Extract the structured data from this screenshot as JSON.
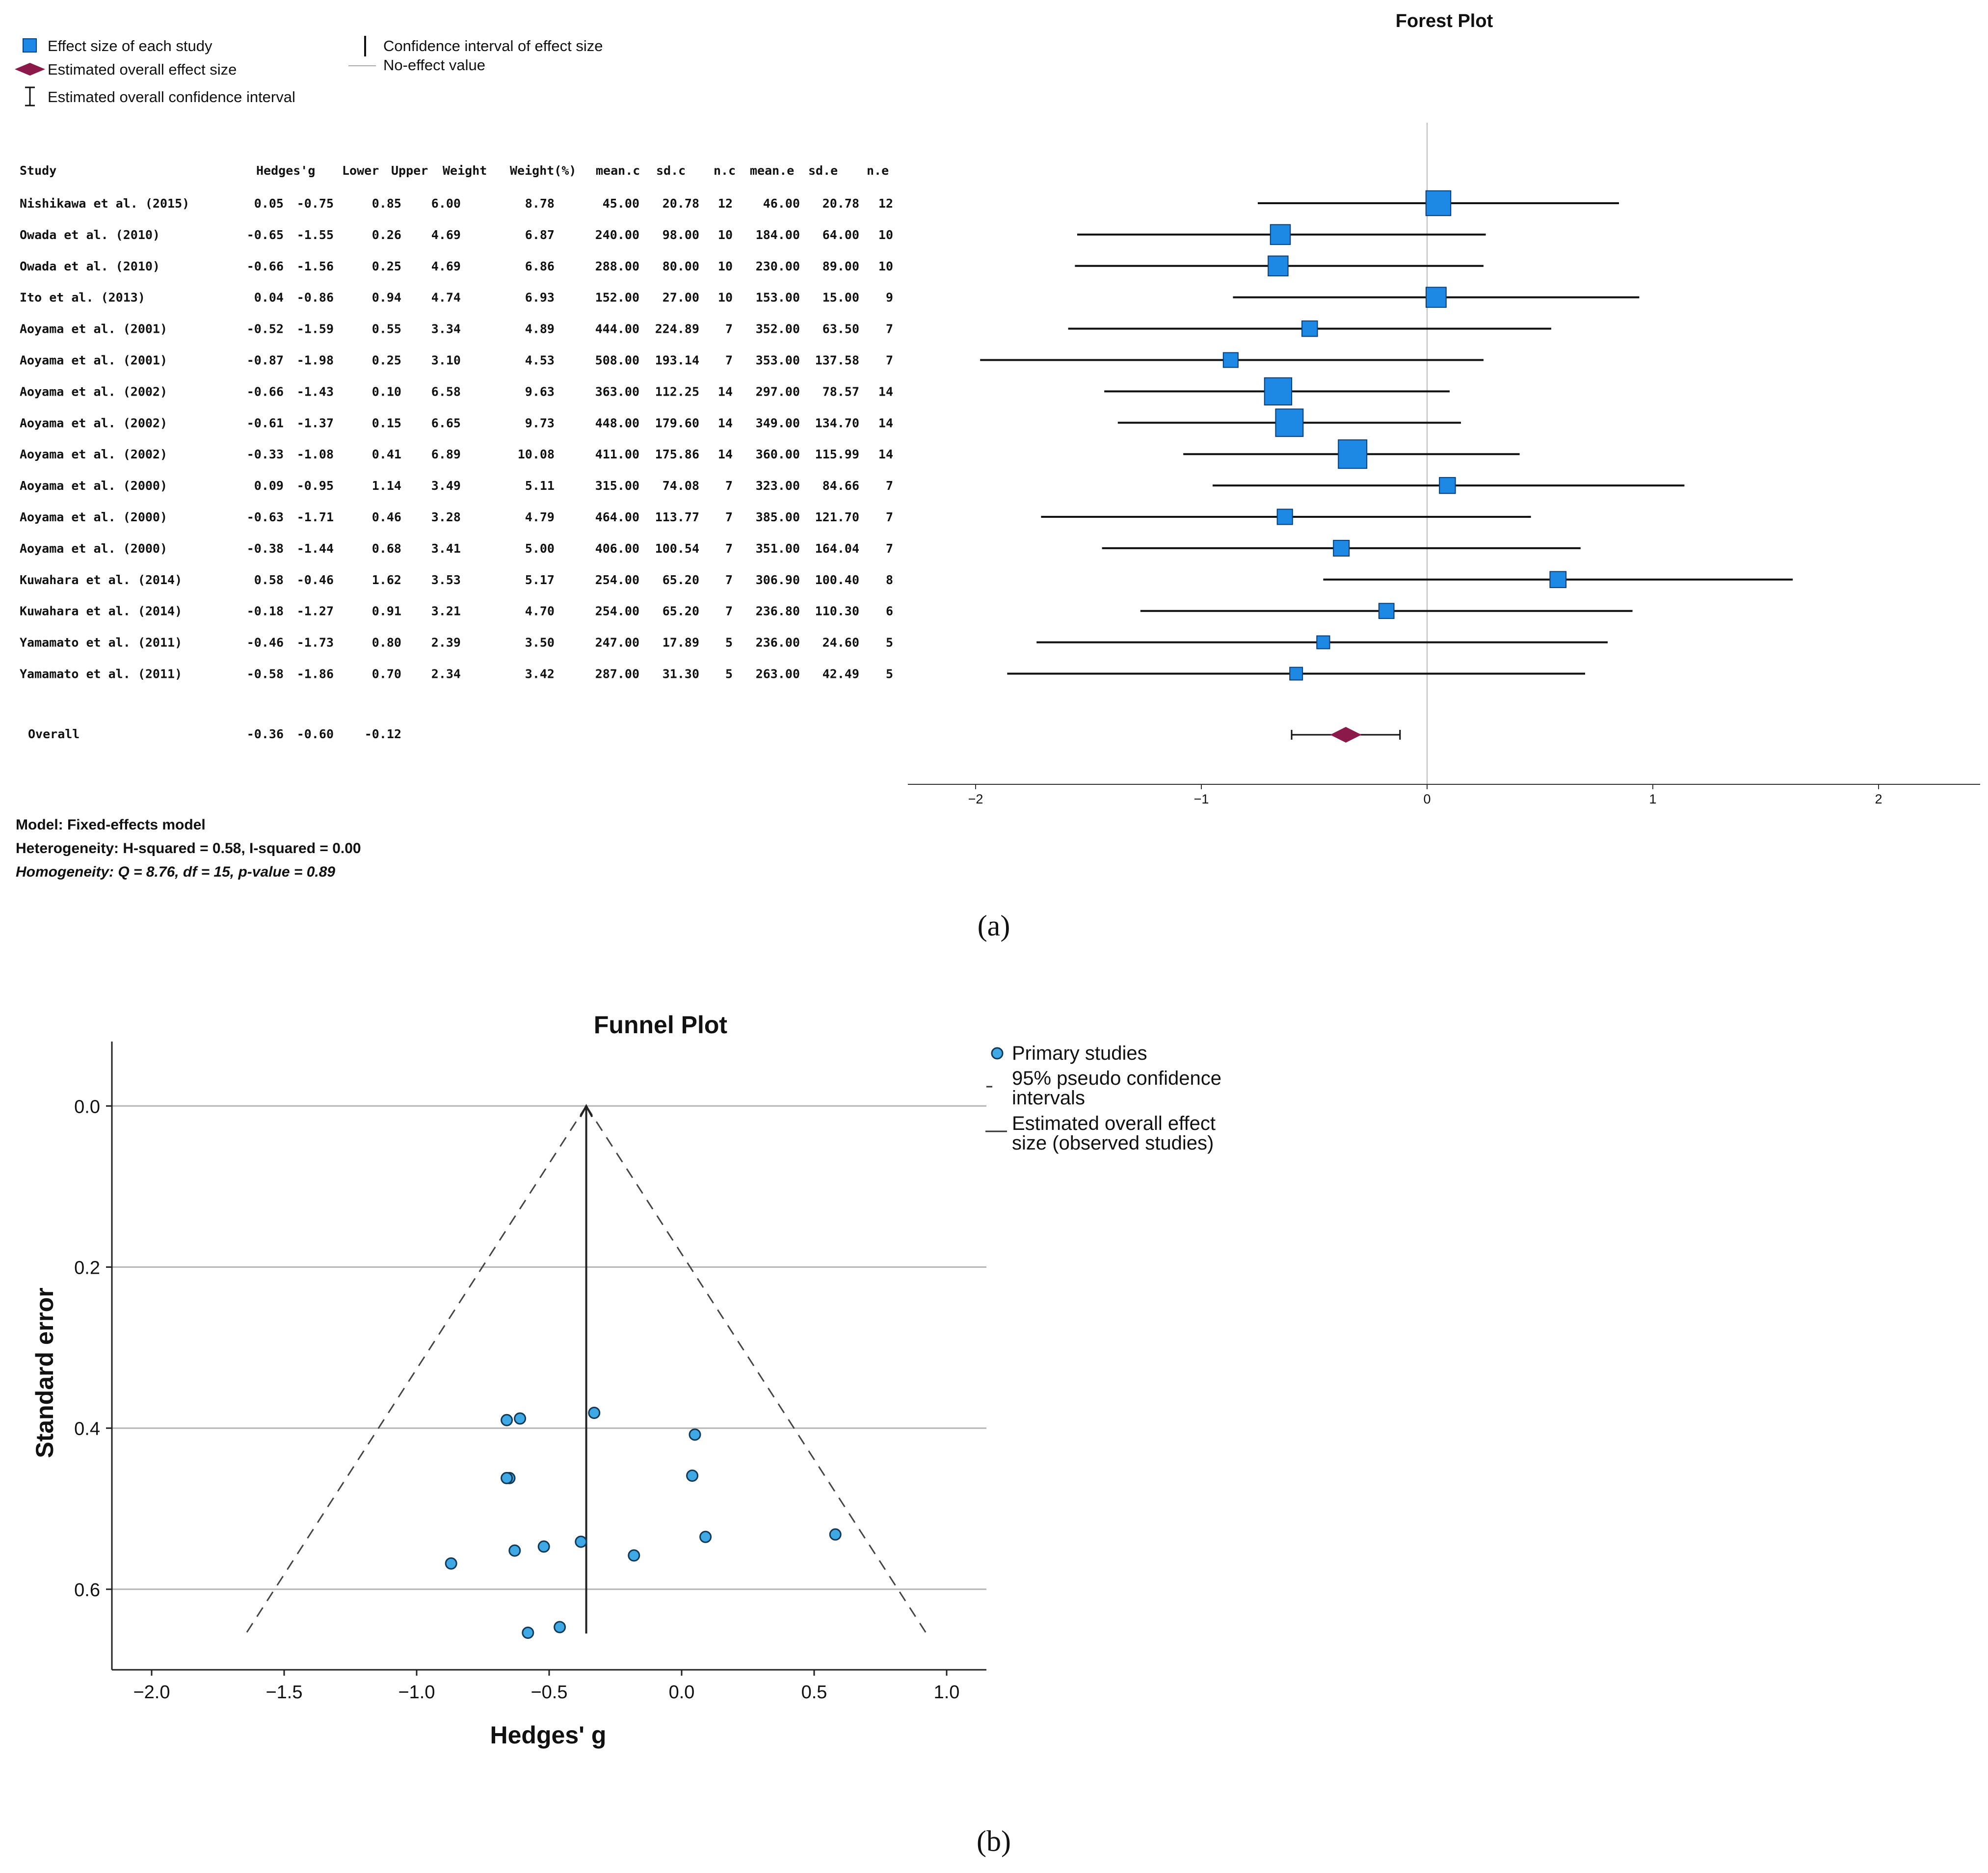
{
  "chart_data": [
    {
      "type": "forest",
      "panel": "(a)",
      "title": "Forest Plot",
      "legend": {
        "study_effect": "Effect size of each study",
        "overall_effect": "Estimated overall effect size",
        "overall_ci": "Estimated overall confidence interval",
        "study_ci": "Confidence interval of effect size",
        "no_effect": "No-effect value"
      },
      "columns": [
        "Study",
        "Hedges'g",
        "Lower",
        "Upper",
        "Weight",
        "Weight(%)",
        "mean.c",
        "sd.c",
        "n.c",
        "mean.e",
        "sd.e",
        "n.e"
      ],
      "studies": [
        {
          "study": "Nishikawa et al. (2015)",
          "g": "0.05",
          "lower": "-0.75",
          "upper": "0.85",
          "weight": "6.00",
          "weight_pct": "8.78",
          "mean_c": "45.00",
          "sd_c": "20.78",
          "n_c": "12",
          "mean_e": "46.00",
          "sd_e": "20.78",
          "n_e": "12"
        },
        {
          "study": "Owada et al. (2010)",
          "g": "-0.65",
          "lower": "-1.55",
          "upper": "0.26",
          "weight": "4.69",
          "weight_pct": "6.87",
          "mean_c": "240.00",
          "sd_c": "98.00",
          "n_c": "10",
          "mean_e": "184.00",
          "sd_e": "64.00",
          "n_e": "10"
        },
        {
          "study": "Owada et al. (2010)",
          "g": "-0.66",
          "lower": "-1.56",
          "upper": "0.25",
          "weight": "4.69",
          "weight_pct": "6.86",
          "mean_c": "288.00",
          "sd_c": "80.00",
          "n_c": "10",
          "mean_e": "230.00",
          "sd_e": "89.00",
          "n_e": "10"
        },
        {
          "study": "Ito et al. (2013)",
          "g": "0.04",
          "lower": "-0.86",
          "upper": "0.94",
          "weight": "4.74",
          "weight_pct": "6.93",
          "mean_c": "152.00",
          "sd_c": "27.00",
          "n_c": "10",
          "mean_e": "153.00",
          "sd_e": "15.00",
          "n_e": "9"
        },
        {
          "study": "Aoyama et al. (2001)",
          "g": "-0.52",
          "lower": "-1.59",
          "upper": "0.55",
          "weight": "3.34",
          "weight_pct": "4.89",
          "mean_c": "444.00",
          "sd_c": "224.89",
          "n_c": "7",
          "mean_e": "352.00",
          "sd_e": "63.50",
          "n_e": "7"
        },
        {
          "study": "Aoyama et al. (2001)",
          "g": "-0.87",
          "lower": "-1.98",
          "upper": "0.25",
          "weight": "3.10",
          "weight_pct": "4.53",
          "mean_c": "508.00",
          "sd_c": "193.14",
          "n_c": "7",
          "mean_e": "353.00",
          "sd_e": "137.58",
          "n_e": "7"
        },
        {
          "study": "Aoyama et al. (2002)",
          "g": "-0.66",
          "lower": "-1.43",
          "upper": "0.10",
          "weight": "6.58",
          "weight_pct": "9.63",
          "mean_c": "363.00",
          "sd_c": "112.25",
          "n_c": "14",
          "mean_e": "297.00",
          "sd_e": "78.57",
          "n_e": "14"
        },
        {
          "study": "Aoyama et al. (2002)",
          "g": "-0.61",
          "lower": "-1.37",
          "upper": "0.15",
          "weight": "6.65",
          "weight_pct": "9.73",
          "mean_c": "448.00",
          "sd_c": "179.60",
          "n_c": "14",
          "mean_e": "349.00",
          "sd_e": "134.70",
          "n_e": "14"
        },
        {
          "study": "Aoyama et al. (2002)",
          "g": "-0.33",
          "lower": "-1.08",
          "upper": "0.41",
          "weight": "6.89",
          "weight_pct": "10.08",
          "mean_c": "411.00",
          "sd_c": "175.86",
          "n_c": "14",
          "mean_e": "360.00",
          "sd_e": "115.99",
          "n_e": "14"
        },
        {
          "study": "Aoyama et al. (2000)",
          "g": "0.09",
          "lower": "-0.95",
          "upper": "1.14",
          "weight": "3.49",
          "weight_pct": "5.11",
          "mean_c": "315.00",
          "sd_c": "74.08",
          "n_c": "7",
          "mean_e": "323.00",
          "sd_e": "84.66",
          "n_e": "7"
        },
        {
          "study": "Aoyama et al. (2000)",
          "g": "-0.63",
          "lower": "-1.71",
          "upper": "0.46",
          "weight": "3.28",
          "weight_pct": "4.79",
          "mean_c": "464.00",
          "sd_c": "113.77",
          "n_c": "7",
          "mean_e": "385.00",
          "sd_e": "121.70",
          "n_e": "7"
        },
        {
          "study": "Aoyama et al. (2000)",
          "g": "-0.38",
          "lower": "-1.44",
          "upper": "0.68",
          "weight": "3.41",
          "weight_pct": "5.00",
          "mean_c": "406.00",
          "sd_c": "100.54",
          "n_c": "7",
          "mean_e": "351.00",
          "sd_e": "164.04",
          "n_e": "7"
        },
        {
          "study": "Kuwahara et al. (2014)",
          "g": "0.58",
          "lower": "-0.46",
          "upper": "1.62",
          "weight": "3.53",
          "weight_pct": "5.17",
          "mean_c": "254.00",
          "sd_c": "65.20",
          "n_c": "7",
          "mean_e": "306.90",
          "sd_e": "100.40",
          "n_e": "8"
        },
        {
          "study": "Kuwahara et al. (2014)",
          "g": "-0.18",
          "lower": "-1.27",
          "upper": "0.91",
          "weight": "3.21",
          "weight_pct": "4.70",
          "mean_c": "254.00",
          "sd_c": "65.20",
          "n_c": "7",
          "mean_e": "236.80",
          "sd_e": "110.30",
          "n_e": "6"
        },
        {
          "study": "Yamamato et al. (2011)",
          "g": "-0.46",
          "lower": "-1.73",
          "upper": "0.80",
          "weight": "2.39",
          "weight_pct": "3.50",
          "mean_c": "247.00",
          "sd_c": "17.89",
          "n_c": "5",
          "mean_e": "236.00",
          "sd_e": "24.60",
          "n_e": "5"
        },
        {
          "study": "Yamamato et al. (2011)",
          "g": "-0.58",
          "lower": "-1.86",
          "upper": "0.70",
          "weight": "2.34",
          "weight_pct": "3.42",
          "mean_c": "287.00",
          "sd_c": "31.30",
          "n_c": "5",
          "mean_e": "263.00",
          "sd_e": "42.49",
          "n_e": "5"
        }
      ],
      "overall": {
        "label": "Overall",
        "g": "-0.36",
        "lower": "-0.60",
        "upper": "-0.12"
      },
      "x_ticks": [
        -2,
        -1,
        0,
        1,
        2
      ],
      "x_tick_labels": [
        "−2",
        "−1",
        "0",
        "1",
        "2"
      ],
      "xlim": [
        -2.3,
        2.45
      ],
      "no_effect_value": 0,
      "notes": [
        "Model: Fixed-effects model",
        "Heterogeneity: H-squared = 0.58, I-squared = 0.00",
        "Homogeneity: Q = 8.76, df = 15, p-value = 0.89"
      ]
    },
    {
      "type": "scatter",
      "panel": "(b)",
      "title": "Funnel Plot",
      "xlabel": "Hedges' g",
      "ylabel": "Standard error",
      "xlim": [
        -2.15,
        1.15
      ],
      "ylim": [
        -0.08,
        0.7
      ],
      "y_inverted": true,
      "x_ticks": [
        -2.0,
        -1.5,
        -1.0,
        -0.5,
        0.0,
        0.5,
        1.0
      ],
      "x_tick_labels": [
        "−2.0",
        "−1.5",
        "−1.0",
        "−0.5",
        "0.0",
        "0.5",
        "1.0"
      ],
      "y_ticks": [
        0.0,
        0.2,
        0.4,
        0.6
      ],
      "y_tick_labels": [
        "0.0",
        "0.2",
        "0.4",
        "0.6"
      ],
      "legend": {
        "points": "Primary studies",
        "ci_line1": "95% pseudo confidence",
        "ci_line2": "intervals",
        "overall_line1": "Estimated overall effect",
        "overall_line2": "size (observed studies)"
      },
      "overall_effect": -0.36,
      "pseudo_ci_max_se": 0.655,
      "points": [
        {
          "x": 0.05,
          "y": 0.408
        },
        {
          "x": -0.65,
          "y": 0.462
        },
        {
          "x": -0.66,
          "y": 0.462
        },
        {
          "x": 0.04,
          "y": 0.459
        },
        {
          "x": -0.52,
          "y": 0.547
        },
        {
          "x": -0.87,
          "y": 0.568
        },
        {
          "x": -0.66,
          "y": 0.39
        },
        {
          "x": -0.61,
          "y": 0.388
        },
        {
          "x": -0.33,
          "y": 0.381
        },
        {
          "x": 0.09,
          "y": 0.535
        },
        {
          "x": -0.63,
          "y": 0.552
        },
        {
          "x": -0.38,
          "y": 0.541
        },
        {
          "x": 0.58,
          "y": 0.532
        },
        {
          "x": -0.18,
          "y": 0.558
        },
        {
          "x": -0.46,
          "y": 0.647
        },
        {
          "x": -0.58,
          "y": 0.654
        }
      ]
    }
  ]
}
